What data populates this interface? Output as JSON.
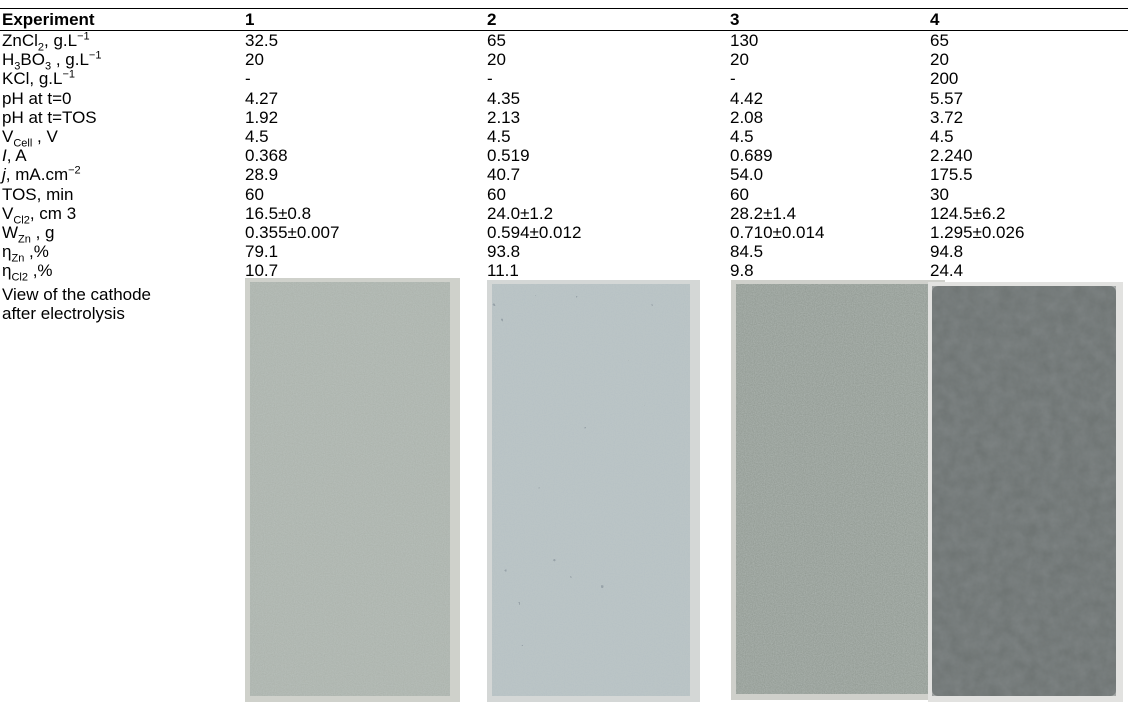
{
  "table": {
    "header": [
      "Experiment",
      "1",
      "2",
      "3",
      "4"
    ],
    "rows": [
      {
        "label": [
          {
            "text": "ZnCl"
          },
          {
            "sub": "2"
          },
          {
            "text": ", g.L"
          },
          {
            "sup": "−1"
          }
        ],
        "values": [
          "32.5",
          "65",
          "130",
          "65"
        ]
      },
      {
        "label": [
          {
            "text": "H"
          },
          {
            "sub": "3"
          },
          {
            "text": "BO"
          },
          {
            "sub": "3"
          },
          {
            "text": " , g.L"
          },
          {
            "sup": "−1"
          }
        ],
        "values": [
          "20",
          "20",
          "20",
          "20"
        ]
      },
      {
        "label": [
          {
            "text": "KCl, g.L"
          },
          {
            "sup": "−1"
          }
        ],
        "values": [
          "-",
          "-",
          "-",
          "200"
        ]
      },
      {
        "label": [
          {
            "text": "pH at t=0"
          }
        ],
        "values": [
          "4.27",
          "4.35",
          "4.42",
          "5.57"
        ]
      },
      {
        "label": [
          {
            "text": "pH at t=TOS"
          }
        ],
        "values": [
          "1.92",
          "2.13",
          "2.08",
          "3.72"
        ]
      },
      {
        "label": [
          {
            "text": "V"
          },
          {
            "sub": "Cell"
          },
          {
            "text": " , V"
          }
        ],
        "values": [
          "4.5",
          "4.5",
          "4.5",
          "4.5"
        ]
      },
      {
        "label": [
          {
            "em": "I"
          },
          {
            "text": ", A"
          }
        ],
        "values": [
          "0.368",
          "0.519",
          "0.689",
          "2.240"
        ]
      },
      {
        "label": [
          {
            "em": "j"
          },
          {
            "text": ", mA.cm"
          },
          {
            "sup": "−2"
          }
        ],
        "values": [
          "28.9",
          "40.7",
          "54.0",
          "175.5"
        ]
      },
      {
        "label": [
          {
            "text": "TOS, min"
          }
        ],
        "values": [
          "60",
          "60",
          "60",
          "30"
        ]
      },
      {
        "label": [
          {
            "text": "V"
          },
          {
            "sub": "Cl2"
          },
          {
            "text": ", cm 3"
          }
        ],
        "values": [
          "16.5±0.8",
          "24.0±1.2",
          "28.2±1.4",
          "124.5±6.2"
        ]
      },
      {
        "label": [
          {
            "text": "W"
          },
          {
            "sub": "Zn"
          },
          {
            "text": " , g"
          }
        ],
        "values": [
          "0.355±0.007",
          "0.594±0.012",
          "0.710±0.014",
          "1.295±0.026"
        ]
      },
      {
        "label": [
          {
            "text": "η"
          },
          {
            "sub": "Zn"
          },
          {
            "text": " ,%"
          }
        ],
        "values": [
          "79.1",
          "93.8",
          "84.5",
          "94.8"
        ]
      },
      {
        "label": [
          {
            "text": "η"
          },
          {
            "sub": "Cl2"
          },
          {
            "text": " ,%"
          }
        ],
        "values": [
          "10.7",
          "11.1",
          "9.8",
          "24.4"
        ]
      }
    ],
    "image_row_label": "View of the cathode after electrolysis"
  }
}
